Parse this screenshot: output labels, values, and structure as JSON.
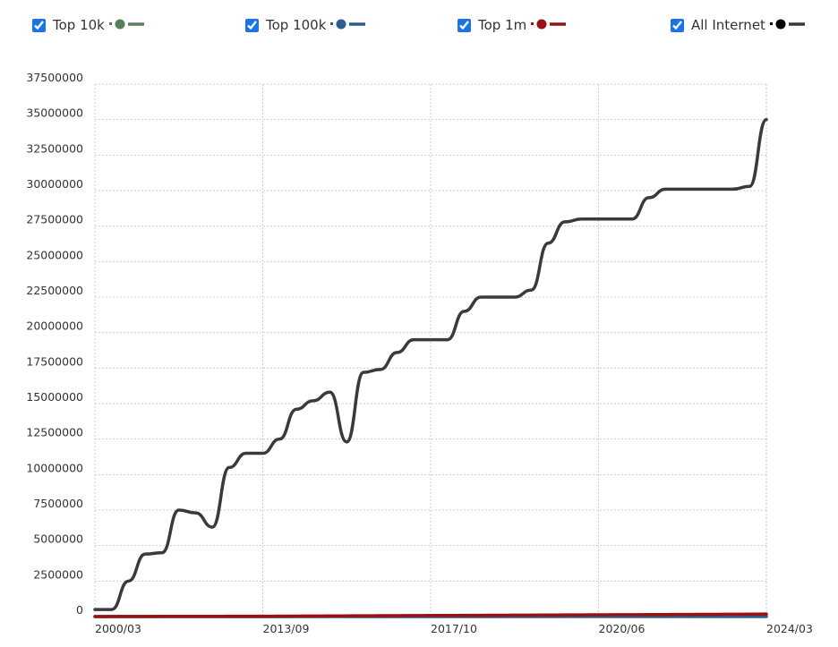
{
  "chart_data": {
    "type": "line",
    "categories": [
      "2000/03",
      null,
      null,
      null,
      null,
      null,
      null,
      null,
      null,
      null,
      "2013/09",
      null,
      null,
      null,
      null,
      null,
      null,
      null,
      null,
      null,
      "2017/10",
      null,
      null,
      null,
      null,
      null,
      null,
      null,
      null,
      null,
      "2020/06",
      null,
      null,
      null,
      null,
      null,
      null,
      null,
      null,
      null,
      "2024/03"
    ],
    "series": [
      {
        "name": "All Internet",
        "color": "#3a3a3a",
        "dot": "#000000",
        "values": [
          500000,
          500000,
          2500000,
          4400000,
          4500000,
          7500000,
          7300000,
          6300000,
          10500000,
          11500000,
          11500000,
          12500000,
          14600000,
          15200000,
          15800000,
          12300000,
          17200000,
          17400000,
          18600000,
          19500000,
          19500000,
          19500000,
          21500000,
          22500000,
          22500000,
          22500000,
          23000000,
          26300000,
          27800000,
          28000000,
          28000000,
          28000000,
          28000000,
          29500000,
          30100000,
          30100000,
          30100000,
          30100000,
          30100000,
          30300000,
          35000000
        ]
      },
      {
        "name": "Top 10k",
        "color": "#5b7f5b",
        "dot": "#5b7f5b",
        "values": [
          0,
          0,
          0,
          0,
          0,
          0,
          0,
          0,
          0,
          0,
          500,
          500,
          500,
          600,
          600,
          600,
          700,
          700,
          700,
          800,
          800,
          800,
          900,
          900,
          900,
          1000,
          1000,
          1000,
          1100,
          1100,
          1100,
          1200,
          1200,
          1200,
          1300,
          1300,
          1300,
          1400,
          1400,
          1400,
          1500
        ]
      },
      {
        "name": "Top 100k",
        "color": "#2c5d8f",
        "dot": "#2c5d8f",
        "values": [
          0,
          0,
          0,
          0,
          0,
          0,
          0,
          0,
          0,
          0,
          3000,
          3500,
          4000,
          4500,
          5000,
          5500,
          6000,
          6500,
          7000,
          7500,
          8000,
          8500,
          9000,
          9500,
          10000,
          10500,
          11000,
          11500,
          12000,
          12500,
          13000,
          13500,
          14000,
          14500,
          15000,
          15500,
          16000,
          16500,
          17000,
          17500,
          18000
        ]
      },
      {
        "name": "Top 1m",
        "color": "#9b1111",
        "dot": "#9b1111",
        "values": [
          0,
          5000,
          8000,
          10000,
          12000,
          14000,
          16000,
          18000,
          20000,
          22000,
          25000,
          30000,
          35000,
          40000,
          45000,
          50000,
          55000,
          60000,
          65000,
          70000,
          75000,
          80000,
          85000,
          90000,
          95000,
          100000,
          105000,
          110000,
          115000,
          120000,
          125000,
          130000,
          135000,
          140000,
          145000,
          150000,
          155000,
          160000,
          165000,
          170000,
          180000
        ]
      }
    ],
    "legend_order": [
      1,
      2,
      3,
      0
    ],
    "ylim": [
      0,
      37500000
    ],
    "yticks": [
      0,
      2500000,
      5000000,
      7500000,
      10000000,
      12500000,
      15000000,
      17500000,
      20000000,
      22500000,
      25000000,
      27500000,
      30000000,
      32500000,
      35000000,
      37500000
    ],
    "grid": true
  }
}
